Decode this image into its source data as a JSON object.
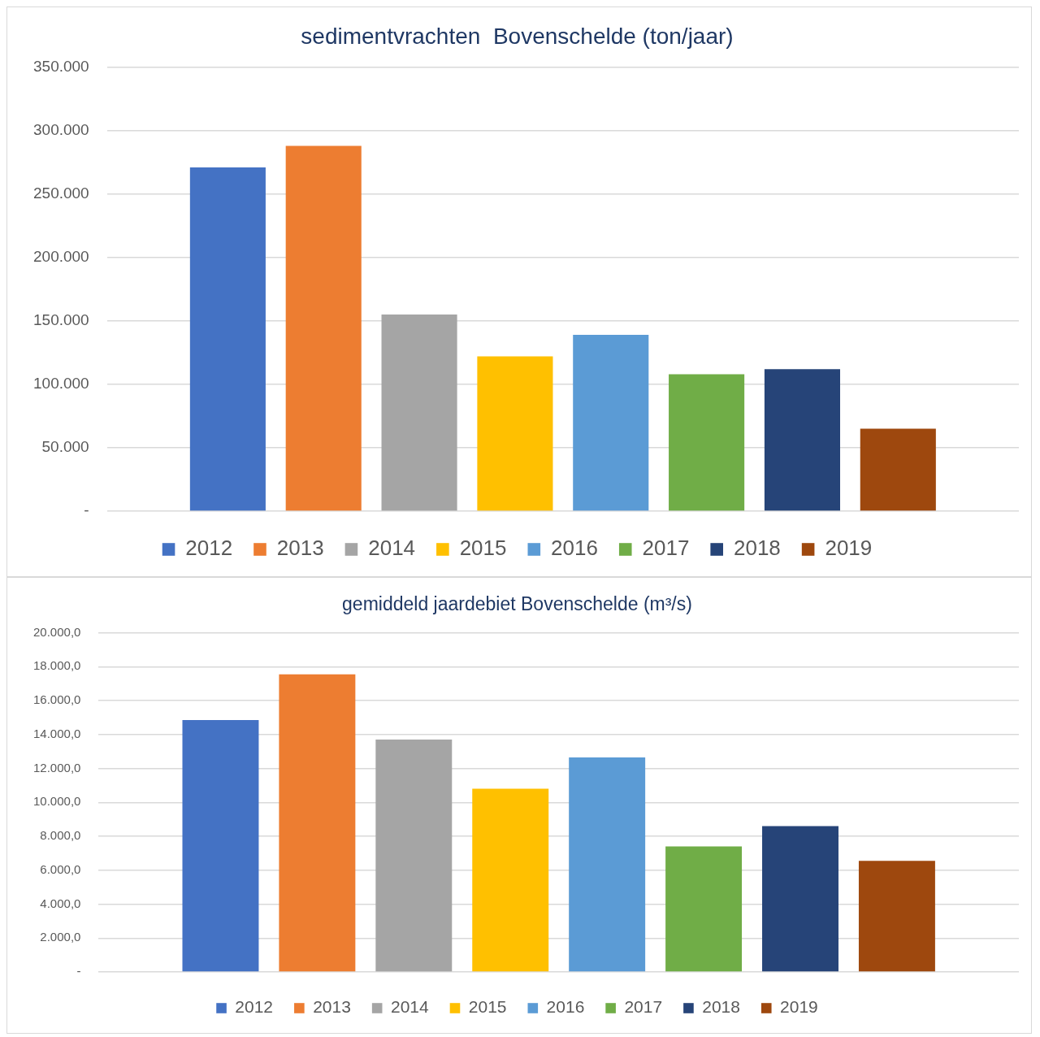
{
  "chart_data": [
    {
      "type": "bar",
      "title": "sedimentvrachten  Bovenschelde (ton/jaar)",
      "categories": [
        null
      ],
      "series": [
        {
          "name": "2012",
          "color": "#4472c4",
          "values": [
            271000
          ]
        },
        {
          "name": "2013",
          "color": "#ed7d31",
          "values": [
            288000
          ]
        },
        {
          "name": "2014",
          "color": "#a5a5a5",
          "values": [
            155000
          ]
        },
        {
          "name": "2015",
          "color": "#ffc000",
          "values": [
            122000
          ]
        },
        {
          "name": "2016",
          "color": "#5b9bd5",
          "values": [
            139000
          ]
        },
        {
          "name": "2017",
          "color": "#70ad47",
          "values": [
            108000
          ]
        },
        {
          "name": "2018",
          "color": "#264478",
          "values": [
            112000
          ]
        },
        {
          "name": "2019",
          "color": "#9e480e",
          "values": [
            65000
          ]
        }
      ],
      "ylim": [
        0,
        350000
      ],
      "yticks": [
        {
          "value": 0,
          "label": "-"
        },
        {
          "value": 50000,
          "label": "50.000"
        },
        {
          "value": 100000,
          "label": "100.000"
        },
        {
          "value": 150000,
          "label": "150.000"
        },
        {
          "value": 200000,
          "label": "200.000"
        },
        {
          "value": 250000,
          "label": "250.000"
        },
        {
          "value": 300000,
          "label": "300.000"
        },
        {
          "value": 350000,
          "label": "350.000"
        }
      ],
      "grid": "y",
      "legend": "bottom",
      "tick_labels": "y"
    },
    {
      "type": "bar",
      "title": "gemiddeld jaardebiet Bovenschelde (m³/s)",
      "categories": [
        null
      ],
      "series": [
        {
          "name": "2012",
          "color": "#4472c4",
          "values": [
            14850
          ]
        },
        {
          "name": "2013",
          "color": "#ed7d31",
          "values": [
            17550
          ]
        },
        {
          "name": "2014",
          "color": "#a5a5a5",
          "values": [
            13700
          ]
        },
        {
          "name": "2015",
          "color": "#ffc000",
          "values": [
            10800
          ]
        },
        {
          "name": "2016",
          "color": "#5b9bd5",
          "values": [
            12650
          ]
        },
        {
          "name": "2017",
          "color": "#70ad47",
          "values": [
            7400
          ]
        },
        {
          "name": "2018",
          "color": "#264478",
          "values": [
            8600
          ]
        },
        {
          "name": "2019",
          "color": "#9e480e",
          "values": [
            6550
          ]
        }
      ],
      "ylim": [
        0,
        20000
      ],
      "yticks": [
        {
          "value": 0,
          "label": "-"
        },
        {
          "value": 2000,
          "label": "2.000,0"
        },
        {
          "value": 4000,
          "label": "4.000,0"
        },
        {
          "value": 6000,
          "label": "6.000,0"
        },
        {
          "value": 8000,
          "label": "8.000,0"
        },
        {
          "value": 10000,
          "label": "10.000,0"
        },
        {
          "value": 12000,
          "label": "12.000,0"
        },
        {
          "value": 14000,
          "label": "14.000,0"
        },
        {
          "value": 16000,
          "label": "16.000,0"
        },
        {
          "value": 18000,
          "label": "18.000,0"
        },
        {
          "value": 20000,
          "label": "20.000,0"
        }
      ],
      "grid": "y",
      "legend": "bottom",
      "tick_labels": "y"
    }
  ]
}
